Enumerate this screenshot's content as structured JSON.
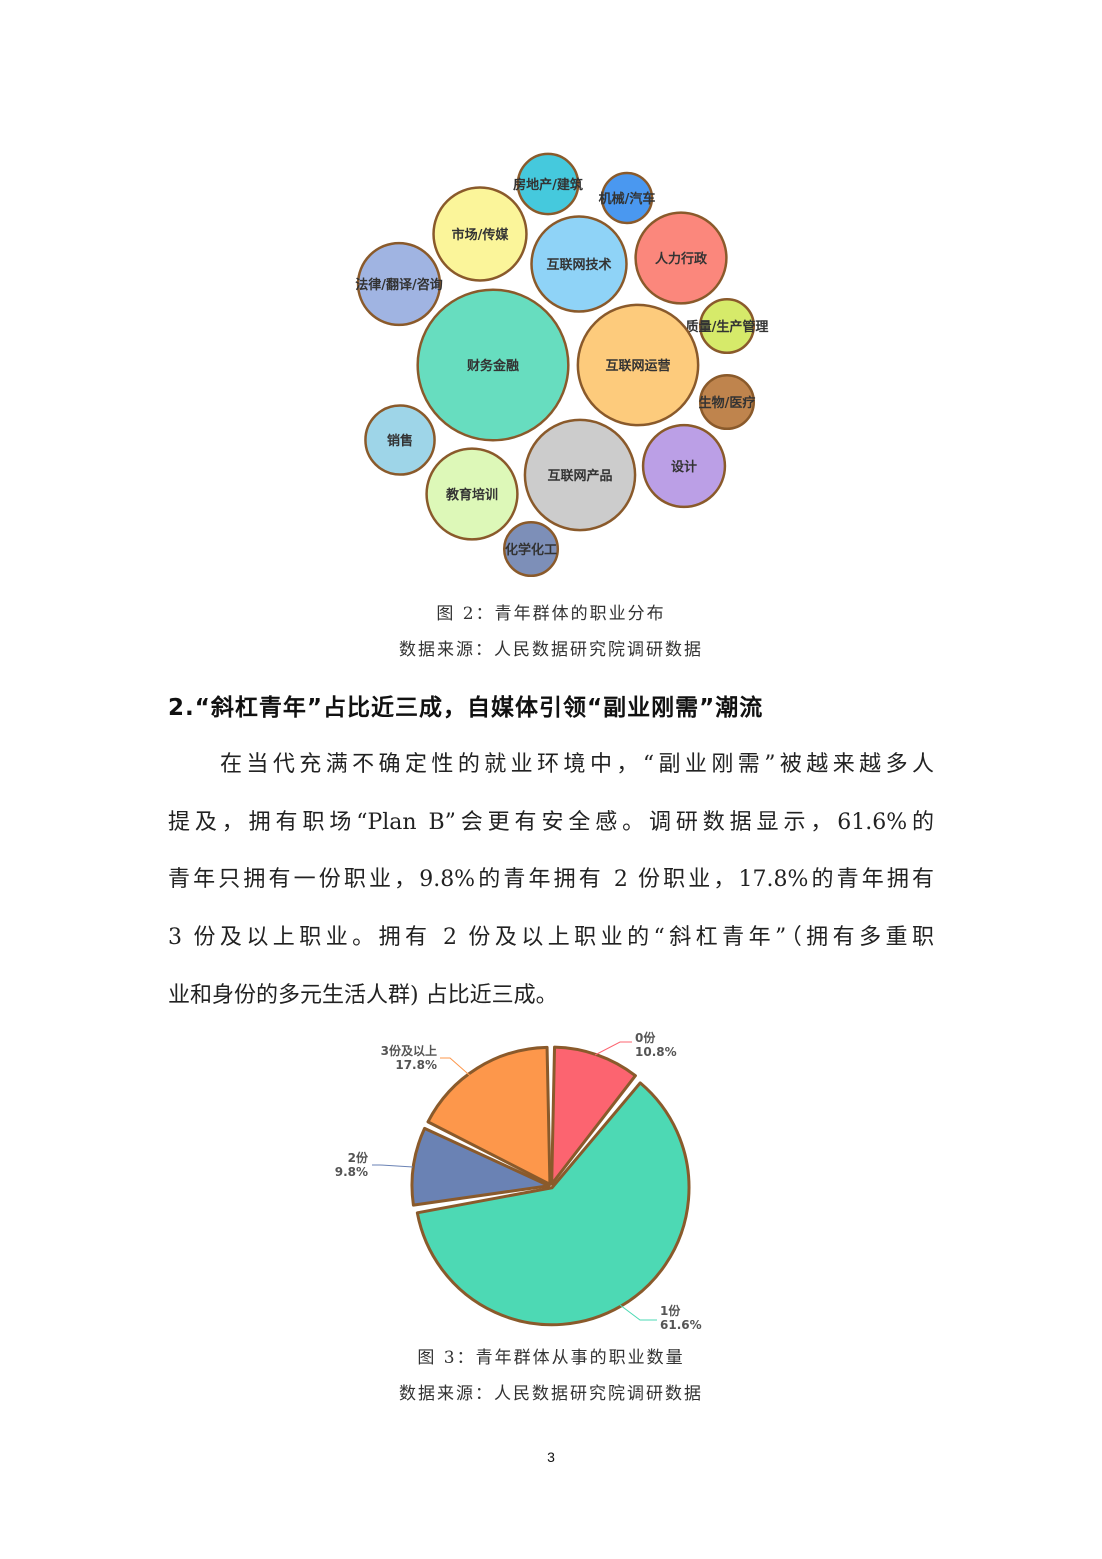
{
  "chart_data": [
    {
      "type": "bubble",
      "title": "",
      "bubble_border_color": "#8a5a2b",
      "items": [
        {
          "label": "房地产/建筑",
          "color": "#45c9dd",
          "value": 10
        },
        {
          "label": "机械/汽车",
          "color": "#4a98f0",
          "value": 7
        },
        {
          "label": "市场/传媒",
          "color": "#fbf59a",
          "value": 23
        },
        {
          "label": "互联网技术",
          "color": "#8fd3f7",
          "value": 24
        },
        {
          "label": "人力行政",
          "color": "#fb877c",
          "value": 22
        },
        {
          "label": "法律/翻译/咨询",
          "color": "#a0b4e2",
          "value": 18
        },
        {
          "label": "质量/生产管理",
          "color": "#d6ea6a",
          "value": 8
        },
        {
          "label": "财务金融",
          "color": "#67ddbf",
          "value": 59
        },
        {
          "label": "互联网运营",
          "color": "#fdcb7c",
          "value": 38
        },
        {
          "label": "生物/医疗",
          "color": "#bf844d",
          "value": 8
        },
        {
          "label": "销售",
          "color": "#9ed5e8",
          "value": 13
        },
        {
          "label": "设计",
          "color": "#bb9fe6",
          "value": 18
        },
        {
          "label": "互联网产品",
          "color": "#cccccc",
          "value": 32
        },
        {
          "label": "教育培训",
          "color": "#ddf8b8",
          "value": 22
        },
        {
          "label": "化学化工",
          "color": "#7d8fb8",
          "value": 8
        }
      ]
    },
    {
      "type": "pie",
      "title": "",
      "slice_border_color": "#8a5a2b",
      "label_color": "#555555",
      "slices": [
        {
          "label": "0份",
          "value": 10.8,
          "value_label": "10.8%",
          "color": "#fc6470"
        },
        {
          "label": "1份",
          "value": 61.6,
          "value_label": "61.6%",
          "color": "#4dd9b4"
        },
        {
          "label": "2份",
          "value": 9.8,
          "value_label": "9.8%",
          "color": "#6a82b4"
        },
        {
          "label": "3份及以上",
          "value": 17.8,
          "value_label": "17.8%",
          "color": "#fd974b"
        }
      ]
    }
  ],
  "figure2": {
    "caption": "图 2：青年群体的职业分布",
    "source": "数据来源：人民数据研究院调研数据"
  },
  "section": {
    "heading": "2.“斜杠青年”占比近三成，自媒体引领“副业刚需”潮流",
    "lines": [
      "在当代充满不确定性的就业环境中，“副业刚需”被越来越多人",
      "提及，拥有职场“Plan B”会更有安全感。调研数据显示，61.6%的",
      "青年只拥有一份职业，9.8%的青年拥有 2 份职业，17.8%的青年拥有",
      "3 份及以上职业。拥有 2 份及以上职业的“斜杠青年”（拥有多重职",
      "业和身份的多元生活人群) 占比近三成。"
    ]
  },
  "figure3": {
    "caption": "图 3：青年群体从事的职业数量",
    "source": "数据来源：人民数据研究院调研数据"
  },
  "page_number": "3"
}
